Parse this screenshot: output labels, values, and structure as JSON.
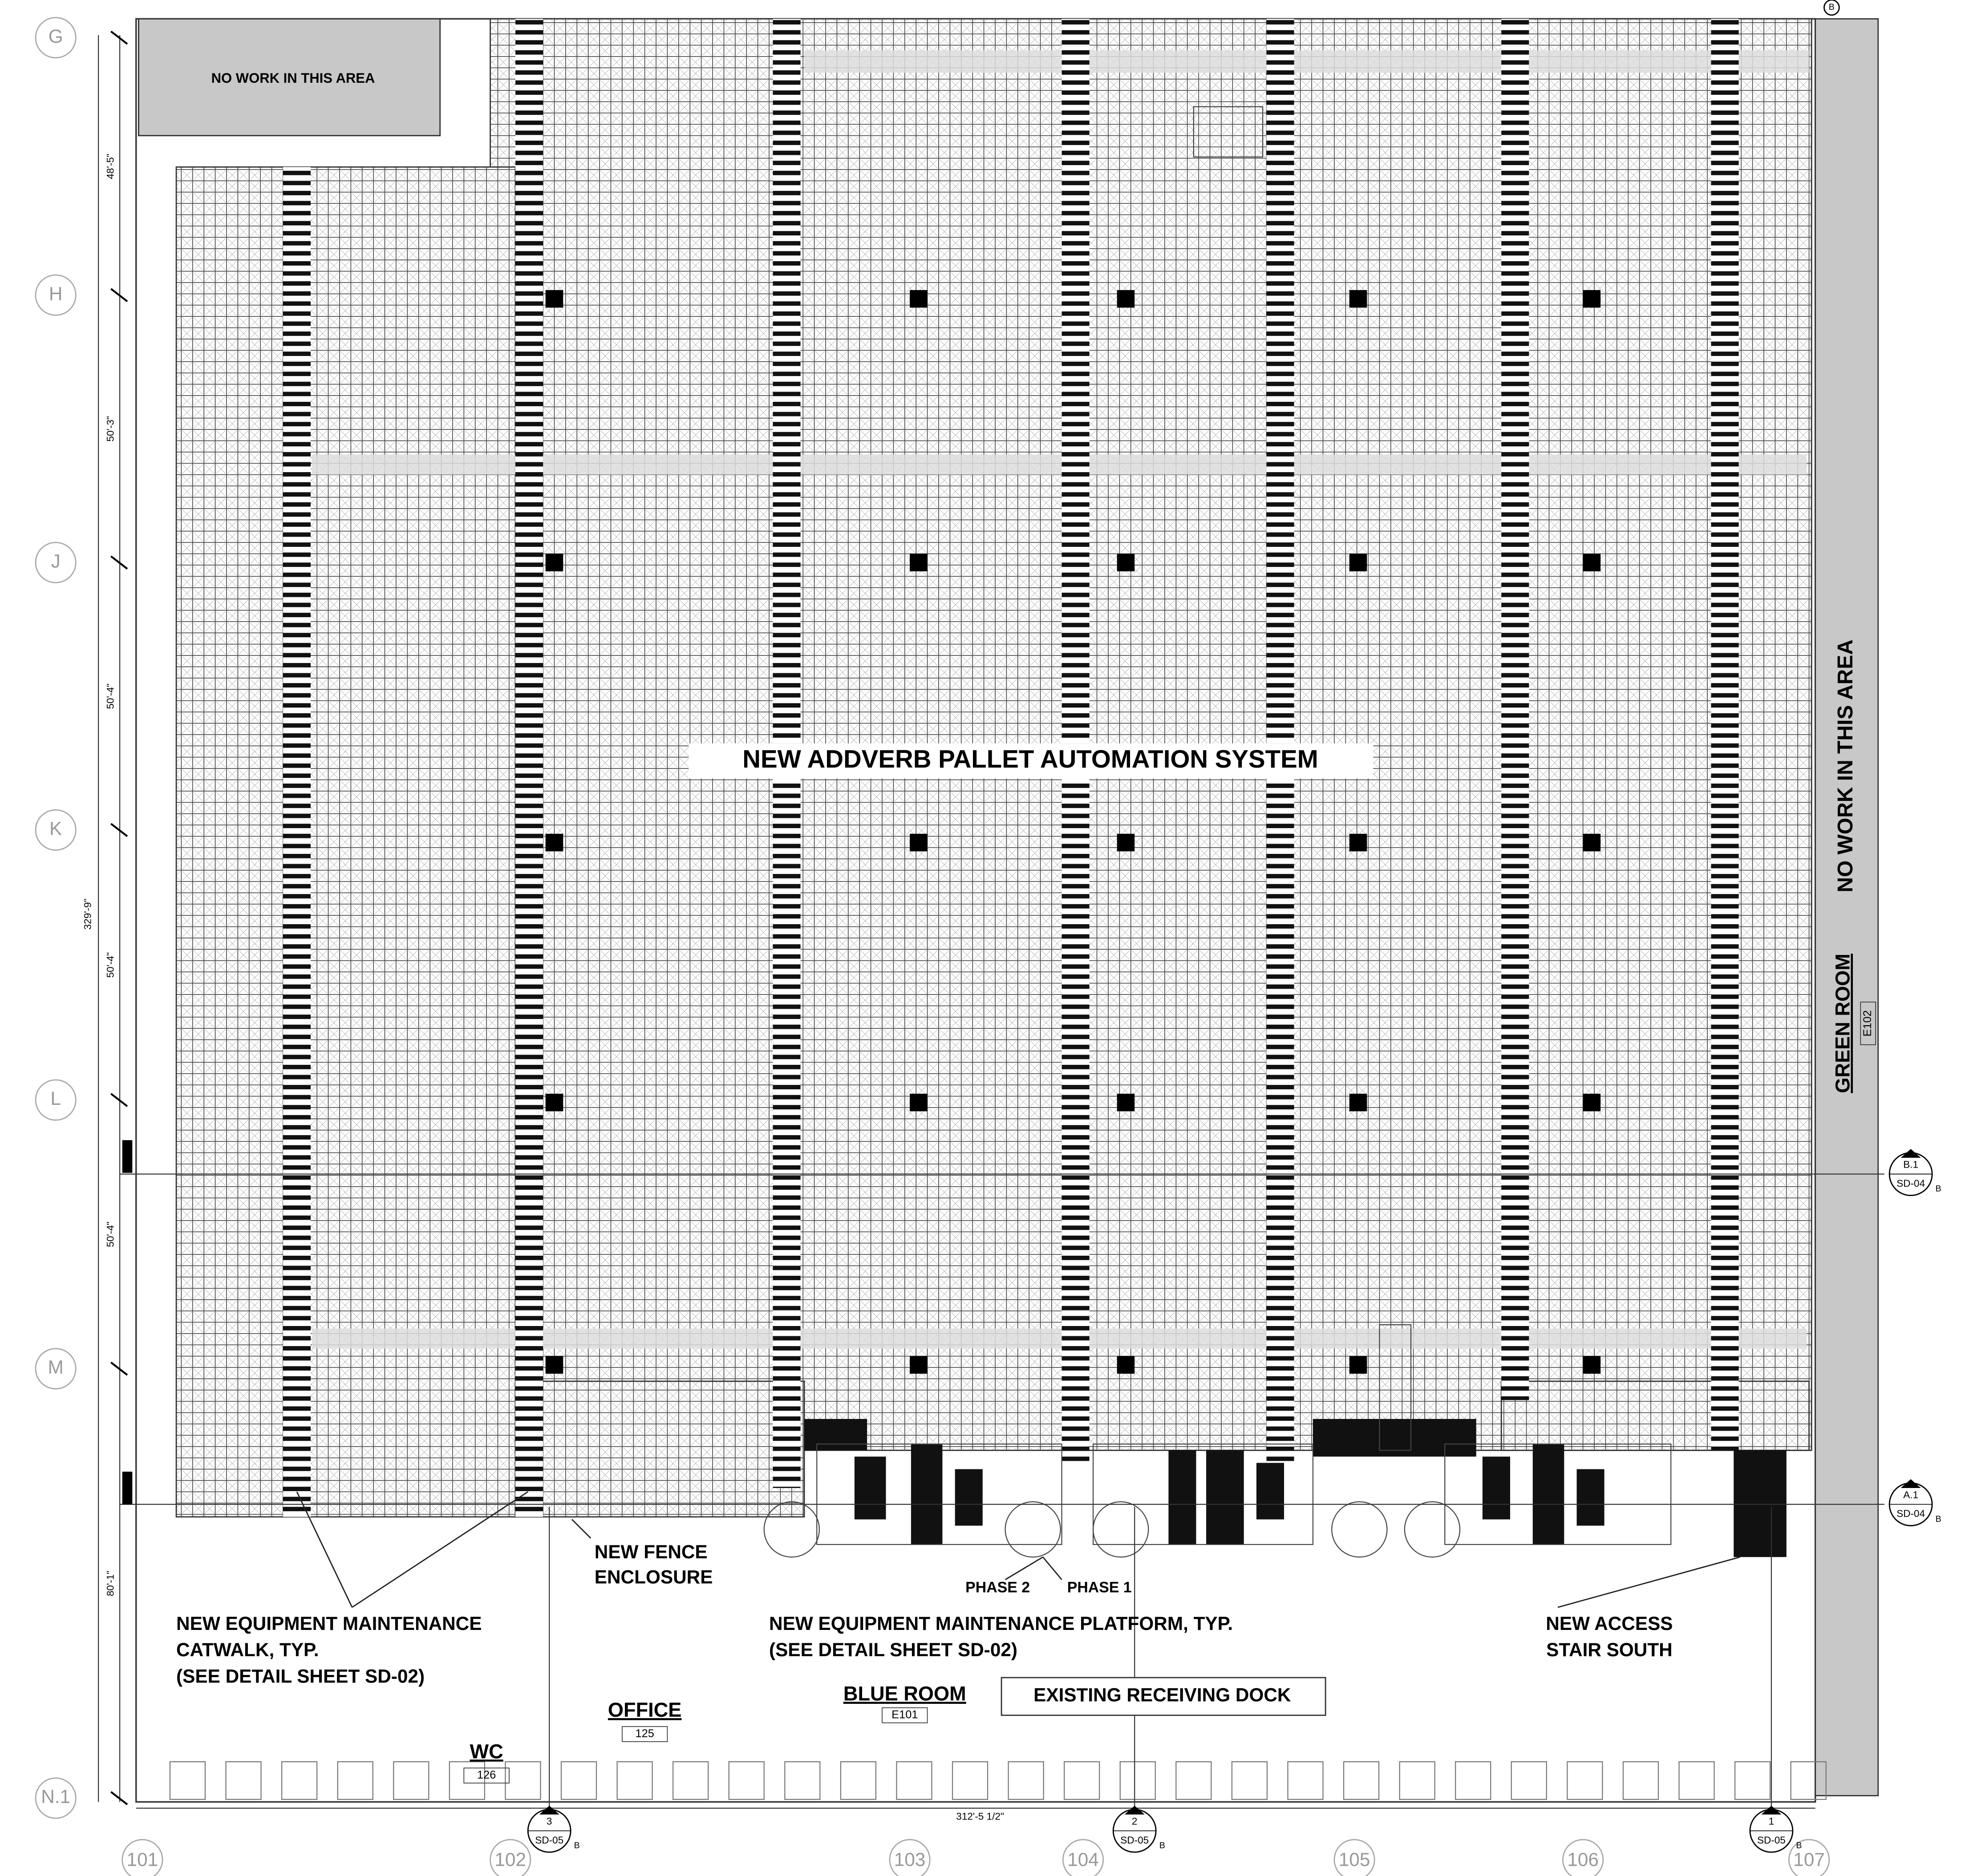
{
  "plan": {
    "row_labels": [
      "G",
      "H",
      "J",
      "K",
      "L",
      "M",
      "N.1"
    ],
    "row_dimensions": [
      "48'-5\"",
      "50'-3\"",
      "50'-4\"",
      "50'-4\"",
      "50'-4\"",
      "80'-1\""
    ],
    "overall_height": "329'-9\"",
    "column_labels": [
      "101",
      "102",
      "103",
      "104",
      "105",
      "106",
      "107"
    ],
    "overall_width": "312'-5 1/2\"",
    "labels": [
      {
        "lines": [
          "NO WORK IN THIS AREA"
        ]
      },
      {
        "lines": [
          "NEW ADDVERB PALLET AUTOMATION SYSTEM"
        ]
      },
      {
        "lines": [
          "NO WORK IN THIS AREA"
        ]
      },
      {
        "lines": [
          "NEW FENCE",
          "ENCLOSURE"
        ]
      },
      {
        "lines": [
          "NEW EQUIPMENT MAINTENANCE",
          "CATWALK, TYP.",
          "(SEE DETAIL SHEET SD-02)"
        ]
      },
      {
        "lines": [
          "PHASE 2"
        ]
      },
      {
        "lines": [
          "PHASE 1"
        ]
      },
      {
        "lines": [
          "NEW EQUIPMENT MAINTENANCE PLATFORM, TYP.",
          "(SEE DETAIL SHEET SD-02)"
        ]
      },
      {
        "lines": [
          "NEW ACCESS",
          "STAIR SOUTH"
        ]
      },
      {
        "lines": [
          "EXISTING RECEIVING DOCK"
        ]
      }
    ],
    "rooms": [
      {
        "name": "GREEN ROOM",
        "number": "E102"
      },
      {
        "name": "BLUE ROOM",
        "number": "E101"
      },
      {
        "name": "OFFICE",
        "number": "125"
      },
      {
        "name": "WC",
        "number": "126"
      }
    ],
    "section_markers": [
      {
        "number": "B.1",
        "sheet": "SD-04",
        "elevation": "B"
      },
      {
        "number": "A.1",
        "sheet": "SD-04",
        "elevation": "B"
      },
      {
        "number": "3",
        "sheet": "SD-05",
        "elevation": "B"
      },
      {
        "number": "2",
        "sheet": "SD-05",
        "elevation": "B"
      },
      {
        "number": "1",
        "sheet": "SD-05",
        "elevation": "B"
      }
    ],
    "top_marker": "B"
  }
}
